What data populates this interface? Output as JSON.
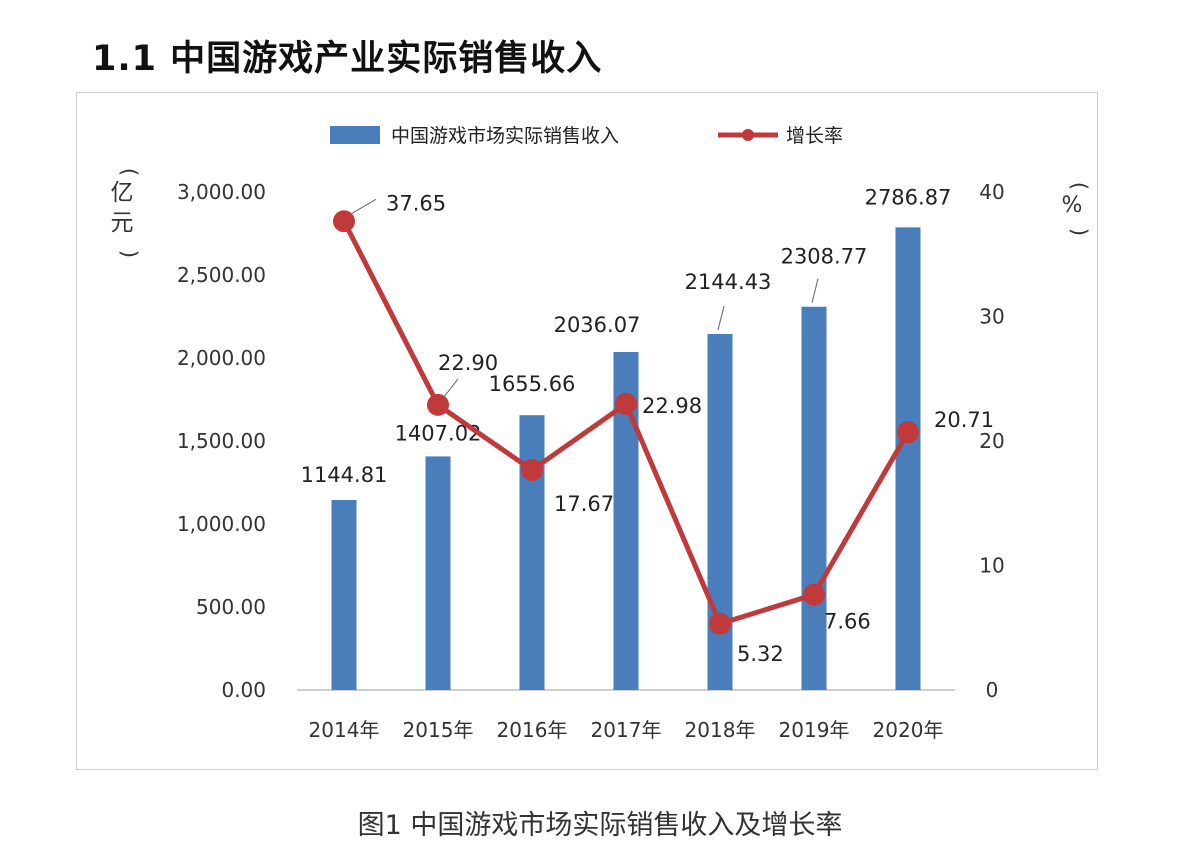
{
  "heading": "1.1 中国游戏产业实际销售收入",
  "caption": "图1  中国游戏市场实际销售收入及增长率",
  "chart_data": {
    "type": "bar",
    "categories": [
      "2014年",
      "2015年",
      "2016年",
      "2017年",
      "2018年",
      "2019年",
      "2020年"
    ],
    "series": [
      {
        "name": "中国游戏市场实际销售收入",
        "type": "bar",
        "axis": "left",
        "values": [
          1144.81,
          1407.02,
          1655.66,
          2036.07,
          2144.43,
          2308.77,
          2786.87
        ],
        "labels": [
          "1144.81",
          "1407.02",
          "1655.66",
          "2036.07",
          "2144.43",
          "2308.77",
          "2786.87"
        ],
        "color": "#4a7ebb"
      },
      {
        "name": "增长率",
        "type": "line",
        "axis": "right",
        "values": [
          37.65,
          22.9,
          17.67,
          22.98,
          5.32,
          7.66,
          20.71
        ],
        "labels": [
          "37.65",
          "22.90",
          "17.67",
          "22.98",
          "5.32",
          "7.66",
          "20.71"
        ],
        "color": "#c0393b"
      }
    ],
    "ylabel": "亿元",
    "ylabel2": "%",
    "ylim": [
      0,
      3000
    ],
    "ylim2": [
      0,
      40
    ],
    "yticks": [
      "0.00",
      "500.00",
      "1,000.00",
      "1,500.00",
      "2,000.00",
      "2,500.00",
      "3,000.00"
    ],
    "yticks2": [
      "0",
      "10",
      "20",
      "30",
      "40"
    ],
    "legend": "top",
    "grid": false
  }
}
